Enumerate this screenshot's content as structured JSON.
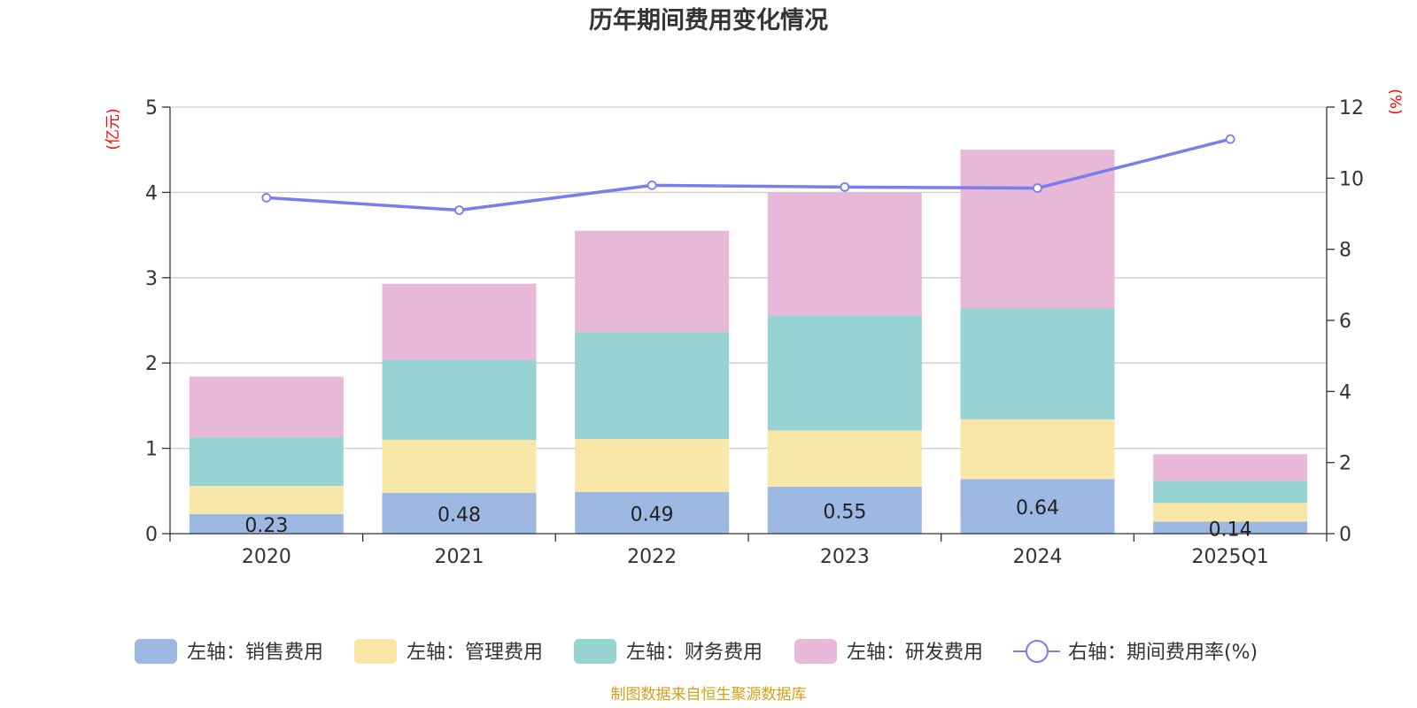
{
  "chart_data": {
    "type": "bar",
    "title": "历年期间费用变化情况",
    "categories": [
      "2020",
      "2021",
      "2022",
      "2023",
      "2024",
      "2025Q1"
    ],
    "stacked": true,
    "left_axis": {
      "unit": "(亿元)",
      "ylim": [
        0,
        5
      ],
      "ticks": [
        "0",
        "1",
        "2",
        "3",
        "4",
        "5"
      ]
    },
    "right_axis": {
      "unit": "(%)",
      "ylim": [
        0,
        12
      ],
      "ticks": [
        "0",
        "2",
        "4",
        "6",
        "8",
        "10",
        "12"
      ]
    },
    "series": [
      {
        "name": "左轴：销售费用",
        "type": "bar",
        "axis": "left",
        "color": "#9db8e3",
        "values": [
          0.23,
          0.48,
          0.49,
          0.55,
          0.64,
          0.14
        ],
        "show_labels": true
      },
      {
        "name": "左轴：管理费用",
        "type": "bar",
        "axis": "left",
        "color": "#f8e7a6",
        "values": [
          0.33,
          0.62,
          0.62,
          0.66,
          0.7,
          0.22
        ]
      },
      {
        "name": "左轴：财务费用",
        "type": "bar",
        "axis": "left",
        "color": "#98d3d4",
        "values": [
          0.57,
          0.94,
          1.25,
          1.35,
          1.3,
          0.26
        ]
      },
      {
        "name": "左轴：研发费用",
        "type": "bar",
        "axis": "left",
        "color": "#e8b8d9",
        "values": [
          0.71,
          0.89,
          1.19,
          1.44,
          1.86,
          0.31
        ]
      },
      {
        "name": "右轴：期间费用率(%)",
        "type": "line",
        "axis": "right",
        "color": "#7b7cee",
        "values": [
          9.45,
          9.1,
          9.8,
          9.75,
          9.72,
          11.1
        ]
      }
    ],
    "grid": true,
    "legend_position": "bottom"
  },
  "source": "制图数据来自恒生聚源数据库"
}
